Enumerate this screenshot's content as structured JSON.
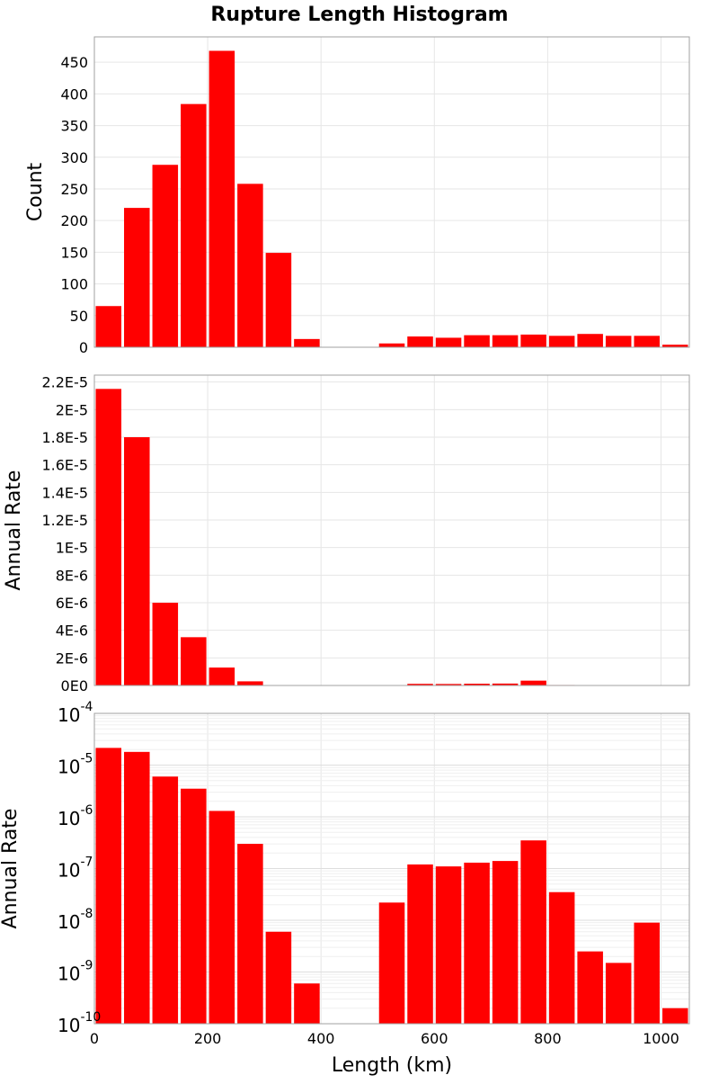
{
  "chart_data": {
    "type": "bar",
    "title": "Rupture Length Histogram",
    "xlabel": "Length (km)",
    "xlim": [
      0,
      1050
    ],
    "xticks": [
      0,
      200,
      400,
      600,
      800,
      1000
    ],
    "xtick_labels": [
      "0",
      "200",
      "400",
      "600",
      "800",
      "1000"
    ],
    "bin_width": 50,
    "bin_centers": [
      25,
      75,
      125,
      175,
      225,
      275,
      325,
      375,
      425,
      475,
      525,
      575,
      625,
      675,
      725,
      775,
      825,
      875,
      925,
      975,
      1025
    ],
    "grid": true,
    "bar_color": "#ff0000",
    "panels": [
      {
        "ylabel": "Count",
        "yscale": "linear",
        "ylim": [
          0,
          490
        ],
        "yticks": [
          0,
          50,
          100,
          150,
          200,
          250,
          300,
          350,
          400,
          450
        ],
        "ytick_labels": [
          "0",
          "50",
          "100",
          "150",
          "200",
          "250",
          "300",
          "350",
          "400",
          "450"
        ],
        "values": [
          65,
          220,
          288,
          384,
          468,
          258,
          149,
          13,
          0,
          0,
          6,
          17,
          15,
          19,
          19,
          20,
          18,
          21,
          18,
          18,
          4
        ]
      },
      {
        "ylabel": "Annual Rate",
        "yscale": "linear",
        "ylim": [
          0,
          2.25e-05
        ],
        "yticks": [
          0,
          2e-06,
          4e-06,
          6e-06,
          8e-06,
          1e-05,
          1.2e-05,
          1.4e-05,
          1.6e-05,
          1.8e-05,
          2e-05,
          2.2e-05
        ],
        "ytick_labels": [
          "0E0",
          "2E-6",
          "4E-6",
          "6E-6",
          "8E-6",
          "1E-5",
          "1.2E-5",
          "1.4E-5",
          "1.6E-5",
          "1.8E-5",
          "2E-5",
          "2.2E-5"
        ],
        "values": [
          2.15e-05,
          1.8e-05,
          6e-06,
          3.5e-06,
          1.3e-06,
          3e-07,
          6e-09,
          6e-10,
          0,
          0,
          2.2e-08,
          1.2e-07,
          1.1e-07,
          1.3e-07,
          1.4e-07,
          3.5e-07,
          3.5e-08,
          2.5e-09,
          1.5e-09,
          9e-09,
          2e-10
        ]
      },
      {
        "ylabel": "Annual Rate",
        "yscale": "log",
        "ylim": [
          1e-10,
          0.0001
        ],
        "ytick_exponents": [
          -10,
          -9,
          -8,
          -7,
          -6,
          -5,
          -4
        ],
        "ytick_base": "10",
        "ytick_exponent_labels": [
          "-10",
          "-9",
          "-8",
          "-7",
          "-6",
          "-5",
          "-4"
        ],
        "values": [
          2.15e-05,
          1.8e-05,
          6e-06,
          3.5e-06,
          1.3e-06,
          3e-07,
          6e-09,
          6e-10,
          0,
          0,
          2.2e-08,
          1.2e-07,
          1.1e-07,
          1.3e-07,
          1.4e-07,
          3.5e-07,
          3.5e-08,
          2.5e-09,
          1.5e-09,
          9e-09,
          2e-10
        ]
      }
    ]
  }
}
